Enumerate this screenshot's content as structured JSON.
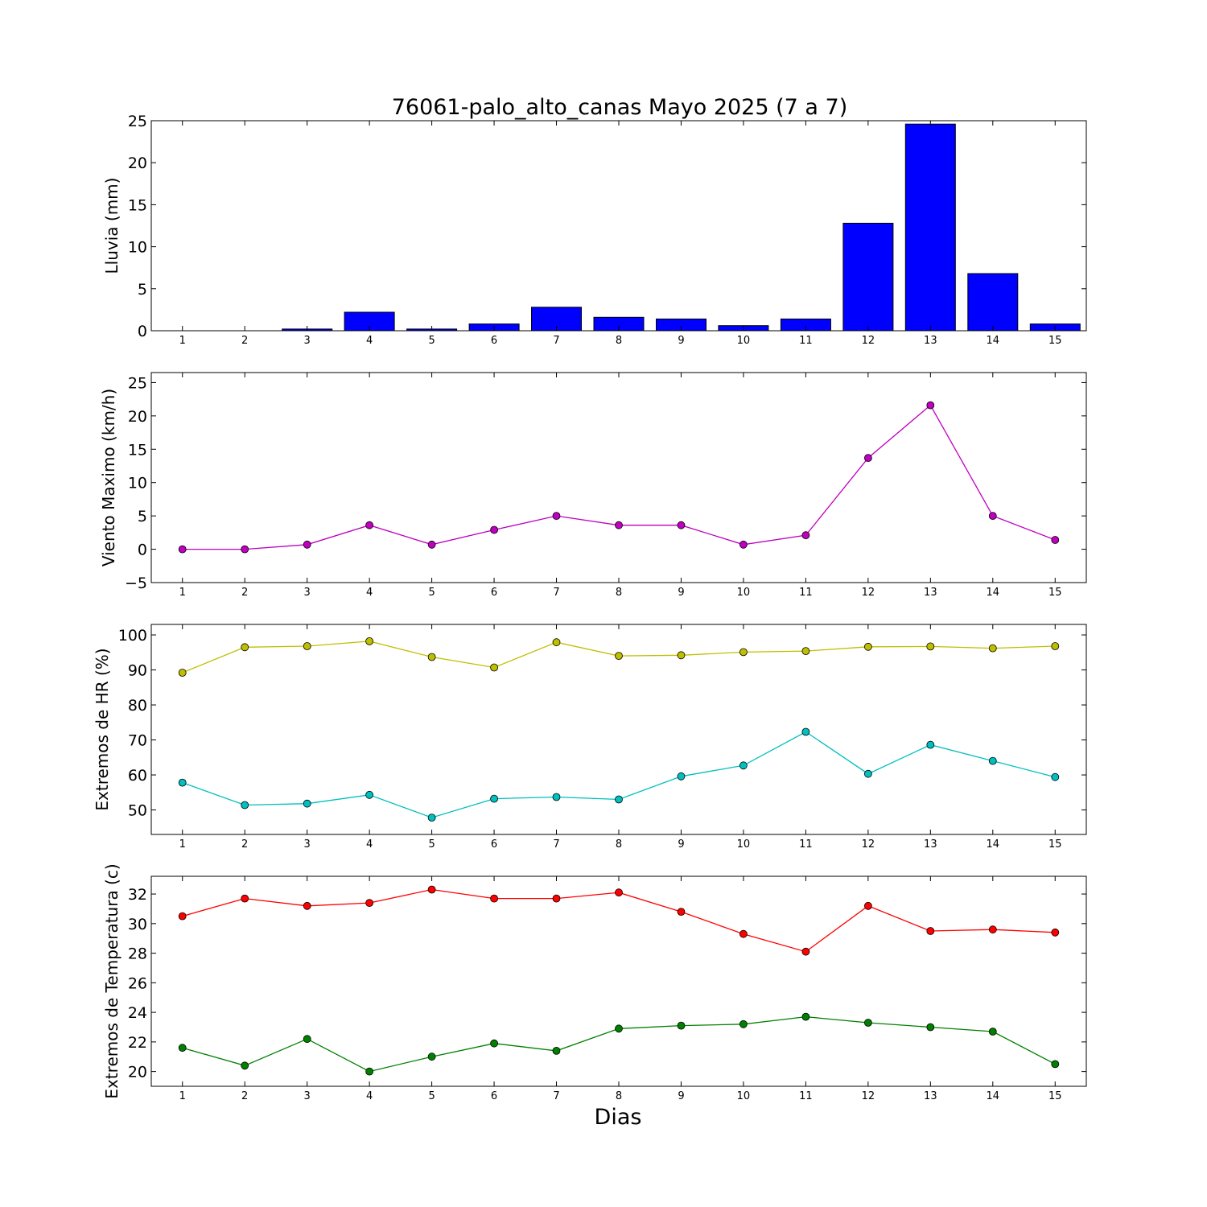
{
  "title": "76061-palo_alto_canas Mayo 2025  (7 a 7)",
  "xlabel": "Dias",
  "chart_data": [
    {
      "type": "bar",
      "ylabel": "Lluvia (mm)",
      "x": [
        1,
        2,
        3,
        4,
        5,
        6,
        7,
        8,
        9,
        10,
        11,
        12,
        13,
        14,
        15
      ],
      "ylim": [
        0,
        25
      ],
      "yticks": [
        0,
        5,
        10,
        15,
        20,
        25
      ],
      "series": [
        {
          "color": "#0000ff",
          "values": [
            0,
            0,
            0.2,
            2.2,
            0.2,
            0.8,
            2.8,
            1.6,
            1.4,
            0.6,
            1.4,
            12.8,
            24.6,
            6.8,
            0.8
          ]
        }
      ],
      "grid": false
    },
    {
      "type": "line",
      "ylabel": "Viento Maximo (km/h)",
      "x": [
        1,
        2,
        3,
        4,
        5,
        6,
        7,
        8,
        9,
        10,
        11,
        12,
        13,
        14,
        15
      ],
      "ylim": [
        -5,
        26.5
      ],
      "yticks": [
        -5,
        0,
        5,
        10,
        15,
        20,
        25
      ],
      "series": [
        {
          "color": "#bf00bf",
          "values": [
            0,
            0,
            0.7,
            3.6,
            0.7,
            2.9,
            5.0,
            3.6,
            3.6,
            0.7,
            2.1,
            13.7,
            21.6,
            5.0,
            1.4
          ]
        }
      ],
      "grid": false
    },
    {
      "type": "line",
      "ylabel": "Extremos de HR (%)",
      "x": [
        1,
        2,
        3,
        4,
        5,
        6,
        7,
        8,
        9,
        10,
        11,
        12,
        13,
        14,
        15
      ],
      "ylim": [
        43,
        103
      ],
      "yticks": [
        50,
        60,
        70,
        80,
        90,
        100
      ],
      "series": [
        {
          "color": "#bfbf00",
          "values": [
            89.2,
            96.5,
            96.8,
            98.2,
            93.7,
            90.7,
            97.9,
            94.0,
            94.2,
            95.1,
            95.4,
            96.6,
            96.7,
            96.2,
            96.8
          ]
        },
        {
          "color": "#00bfbf",
          "values": [
            57.8,
            51.4,
            51.8,
            54.3,
            47.8,
            53.2,
            53.7,
            53.0,
            59.6,
            62.7,
            72.3,
            60.3,
            68.6,
            64.0,
            59.4
          ]
        }
      ],
      "grid": false
    },
    {
      "type": "line",
      "ylabel": "Extremos de Temperatura (c)",
      "x": [
        1,
        2,
        3,
        4,
        5,
        6,
        7,
        8,
        9,
        10,
        11,
        12,
        13,
        14,
        15
      ],
      "ylim": [
        19,
        33.2
      ],
      "yticks": [
        20,
        22,
        24,
        26,
        28,
        30,
        32
      ],
      "series": [
        {
          "color": "#ff0000",
          "values": [
            30.5,
            31.7,
            31.2,
            31.4,
            32.3,
            31.7,
            31.7,
            32.1,
            30.8,
            29.3,
            28.1,
            31.2,
            29.5,
            29.6,
            29.4
          ]
        },
        {
          "color": "#008000",
          "values": [
            21.6,
            20.4,
            22.2,
            20.0,
            21.0,
            21.9,
            21.4,
            22.9,
            23.1,
            23.2,
            23.7,
            23.3,
            23.0,
            22.7,
            20.5
          ]
        }
      ],
      "grid": false
    }
  ]
}
